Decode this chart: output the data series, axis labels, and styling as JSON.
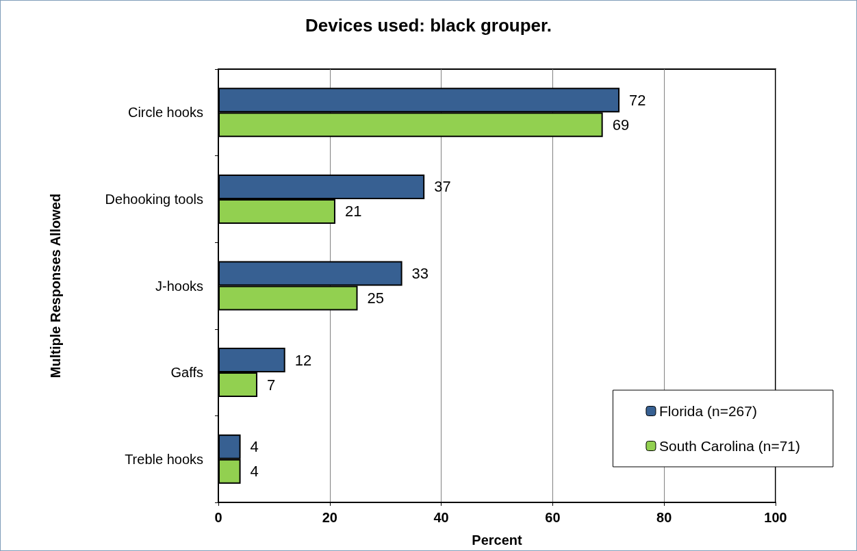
{
  "chart_data": {
    "type": "bar",
    "orientation": "horizontal",
    "title": "Devices used: black grouper.",
    "xlabel": "Percent",
    "ylabel": "Multiple Responses Allowed",
    "categories": [
      "Circle hooks",
      "Dehooking tools",
      "J-hooks",
      "Gaffs",
      "Treble hooks"
    ],
    "series": [
      {
        "name": "Florida (n=267)",
        "color": "#376092",
        "values": [
          72,
          37,
          33,
          12,
          4
        ]
      },
      {
        "name": "South Carolina (n=71)",
        "color": "#92d050",
        "values": [
          69,
          21,
          25,
          7,
          4
        ]
      }
    ],
    "xlim": [
      0,
      100
    ],
    "xticks": [
      0,
      20,
      40,
      60,
      80,
      100
    ],
    "grid": "x",
    "legend": "bottom right",
    "data_labels": true
  }
}
